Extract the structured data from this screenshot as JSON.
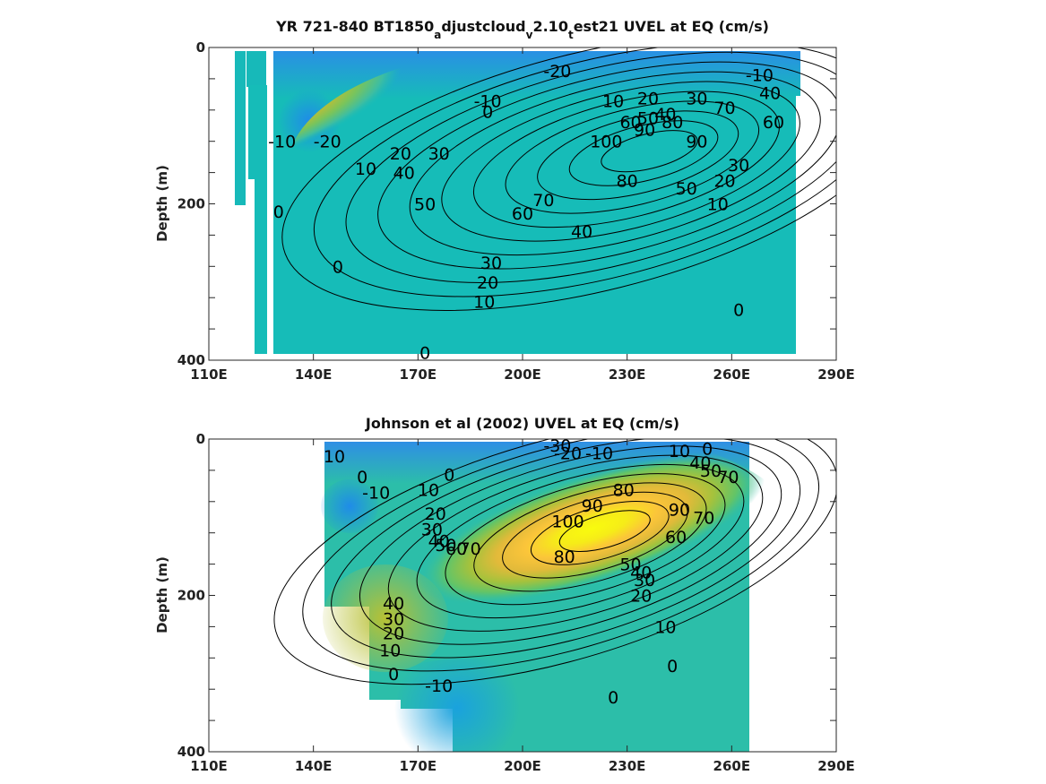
{
  "chart_data": [
    {
      "type": "heatmap",
      "title_parts": [
        "YR 721-840 BT1850",
        "a",
        "djustcloud",
        "v",
        "2.10",
        "t",
        "est21 UVEL at EQ (cm/s)"
      ],
      "xlabel": "",
      "ylabel": "Depth (m)",
      "xlim": [
        110,
        290
      ],
      "ylim": [
        0,
        400
      ],
      "y_reversed": true,
      "x_ticks": [
        "110E",
        "140E",
        "170E",
        "200E",
        "230E",
        "260E",
        "290E"
      ],
      "x_tick_values": [
        110,
        140,
        170,
        200,
        230,
        260,
        290
      ],
      "y_ticks": [
        "0",
        "200",
        "400"
      ],
      "y_tick_values": [
        0,
        200,
        400
      ],
      "colormap": "parula",
      "core": {
        "lon": 238,
        "depth": 130,
        "max": 100
      },
      "contour_labels": [
        {
          "text": "-20",
          "lon": 210,
          "depth": 30
        },
        {
          "text": "-10",
          "lon": 268,
          "depth": 35
        },
        {
          "text": "-10",
          "lon": 190,
          "depth": 68
        },
        {
          "text": "0",
          "lon": 190,
          "depth": 82
        },
        {
          "text": "10",
          "lon": 226,
          "depth": 68
        },
        {
          "text": "20",
          "lon": 236,
          "depth": 65
        },
        {
          "text": "30",
          "lon": 250,
          "depth": 65
        },
        {
          "text": "40",
          "lon": 271,
          "depth": 58
        },
        {
          "text": "70",
          "lon": 258,
          "depth": 77
        },
        {
          "text": "60",
          "lon": 272,
          "depth": 95
        },
        {
          "text": "-20",
          "lon": 144,
          "depth": 120
        },
        {
          "text": "-10",
          "lon": 131,
          "depth": 120
        },
        {
          "text": "10",
          "lon": 155,
          "depth": 155
        },
        {
          "text": "20",
          "lon": 165,
          "depth": 135
        },
        {
          "text": "30",
          "lon": 176,
          "depth": 135
        },
        {
          "text": "40",
          "lon": 166,
          "depth": 160
        },
        {
          "text": "50",
          "lon": 172,
          "depth": 200
        },
        {
          "text": "60",
          "lon": 231,
          "depth": 95
        },
        {
          "text": "50",
          "lon": 236,
          "depth": 90
        },
        {
          "text": "40",
          "lon": 241,
          "depth": 85
        },
        {
          "text": "90",
          "lon": 235,
          "depth": 105
        },
        {
          "text": "80",
          "lon": 243,
          "depth": 95
        },
        {
          "text": "100",
          "lon": 224,
          "depth": 120
        },
        {
          "text": "90",
          "lon": 250,
          "depth": 120
        },
        {
          "text": "80",
          "lon": 230,
          "depth": 170
        },
        {
          "text": "70",
          "lon": 206,
          "depth": 195
        },
        {
          "text": "60",
          "lon": 200,
          "depth": 212
        },
        {
          "text": "50",
          "lon": 247,
          "depth": 180
        },
        {
          "text": "30",
          "lon": 262,
          "depth": 150
        },
        {
          "text": "20",
          "lon": 258,
          "depth": 170
        },
        {
          "text": "10",
          "lon": 256,
          "depth": 200
        },
        {
          "text": "40",
          "lon": 217,
          "depth": 235
        },
        {
          "text": "0",
          "lon": 130,
          "depth": 210
        },
        {
          "text": "0",
          "lon": 147,
          "depth": 280
        },
        {
          "text": "30",
          "lon": 191,
          "depth": 275
        },
        {
          "text": "20",
          "lon": 190,
          "depth": 300
        },
        {
          "text": "10",
          "lon": 189,
          "depth": 325
        },
        {
          "text": "0",
          "lon": 262,
          "depth": 335
        },
        {
          "text": "0",
          "lon": 172,
          "depth": 390
        }
      ]
    },
    {
      "type": "heatmap",
      "title": "Johnson et al (2002) UVEL at EQ (cm/s)",
      "xlabel": "",
      "ylabel": "Depth (m)",
      "xlim": [
        110,
        290
      ],
      "ylim": [
        0,
        400
      ],
      "y_reversed": true,
      "x_ticks": [
        "110E",
        "140E",
        "170E",
        "200E",
        "230E",
        "260E",
        "290E"
      ],
      "x_tick_values": [
        110,
        140,
        170,
        200,
        230,
        260,
        290
      ],
      "y_ticks": [
        "0",
        "200",
        "400"
      ],
      "y_tick_values": [
        0,
        200,
        400
      ],
      "colormap": "parula",
      "core": {
        "lon": 225,
        "depth": 115,
        "max": 100
      },
      "contour_labels": [
        {
          "text": "-30",
          "lon": 210,
          "depth": 8
        },
        {
          "text": "-20",
          "lon": 213,
          "depth": 18
        },
        {
          "text": "-10",
          "lon": 222,
          "depth": 18
        },
        {
          "text": "10",
          "lon": 245,
          "depth": 15
        },
        {
          "text": "0",
          "lon": 253,
          "depth": 12
        },
        {
          "text": "10",
          "lon": 146,
          "depth": 22
        },
        {
          "text": "0",
          "lon": 154,
          "depth": 48
        },
        {
          "text": "-10",
          "lon": 158,
          "depth": 68
        },
        {
          "text": "0",
          "lon": 179,
          "depth": 45
        },
        {
          "text": "10",
          "lon": 173,
          "depth": 65
        },
        {
          "text": "40",
          "lon": 251,
          "depth": 30
        },
        {
          "text": "50",
          "lon": 254,
          "depth": 40
        },
        {
          "text": "70",
          "lon": 259,
          "depth": 48
        },
        {
          "text": "80",
          "lon": 229,
          "depth": 65
        },
        {
          "text": "90",
          "lon": 220,
          "depth": 85
        },
        {
          "text": "100",
          "lon": 213,
          "depth": 105
        },
        {
          "text": "90",
          "lon": 245,
          "depth": 90
        },
        {
          "text": "70",
          "lon": 252,
          "depth": 100
        },
        {
          "text": "60",
          "lon": 244,
          "depth": 125
        },
        {
          "text": "80",
          "lon": 212,
          "depth": 150
        },
        {
          "text": "20",
          "lon": 175,
          "depth": 95
        },
        {
          "text": "30",
          "lon": 174,
          "depth": 115
        },
        {
          "text": "40",
          "lon": 176,
          "depth": 130
        },
        {
          "text": "50",
          "lon": 178,
          "depth": 135
        },
        {
          "text": "60",
          "lon": 181,
          "depth": 140
        },
        {
          "text": "70",
          "lon": 185,
          "depth": 140
        },
        {
          "text": "50",
          "lon": 231,
          "depth": 160
        },
        {
          "text": "40",
          "lon": 234,
          "depth": 170
        },
        {
          "text": "30",
          "lon": 235,
          "depth": 180
        },
        {
          "text": "20",
          "lon": 234,
          "depth": 200
        },
        {
          "text": "10",
          "lon": 241,
          "depth": 240
        },
        {
          "text": "40",
          "lon": 163,
          "depth": 210
        },
        {
          "text": "30",
          "lon": 163,
          "depth": 230
        },
        {
          "text": "20",
          "lon": 163,
          "depth": 248
        },
        {
          "text": "10",
          "lon": 162,
          "depth": 270
        },
        {
          "text": "0",
          "lon": 163,
          "depth": 300
        },
        {
          "text": "0",
          "lon": 243,
          "depth": 290
        },
        {
          "text": "0",
          "lon": 226,
          "depth": 330
        },
        {
          "text": "-10",
          "lon": 176,
          "depth": 315
        }
      ]
    }
  ]
}
